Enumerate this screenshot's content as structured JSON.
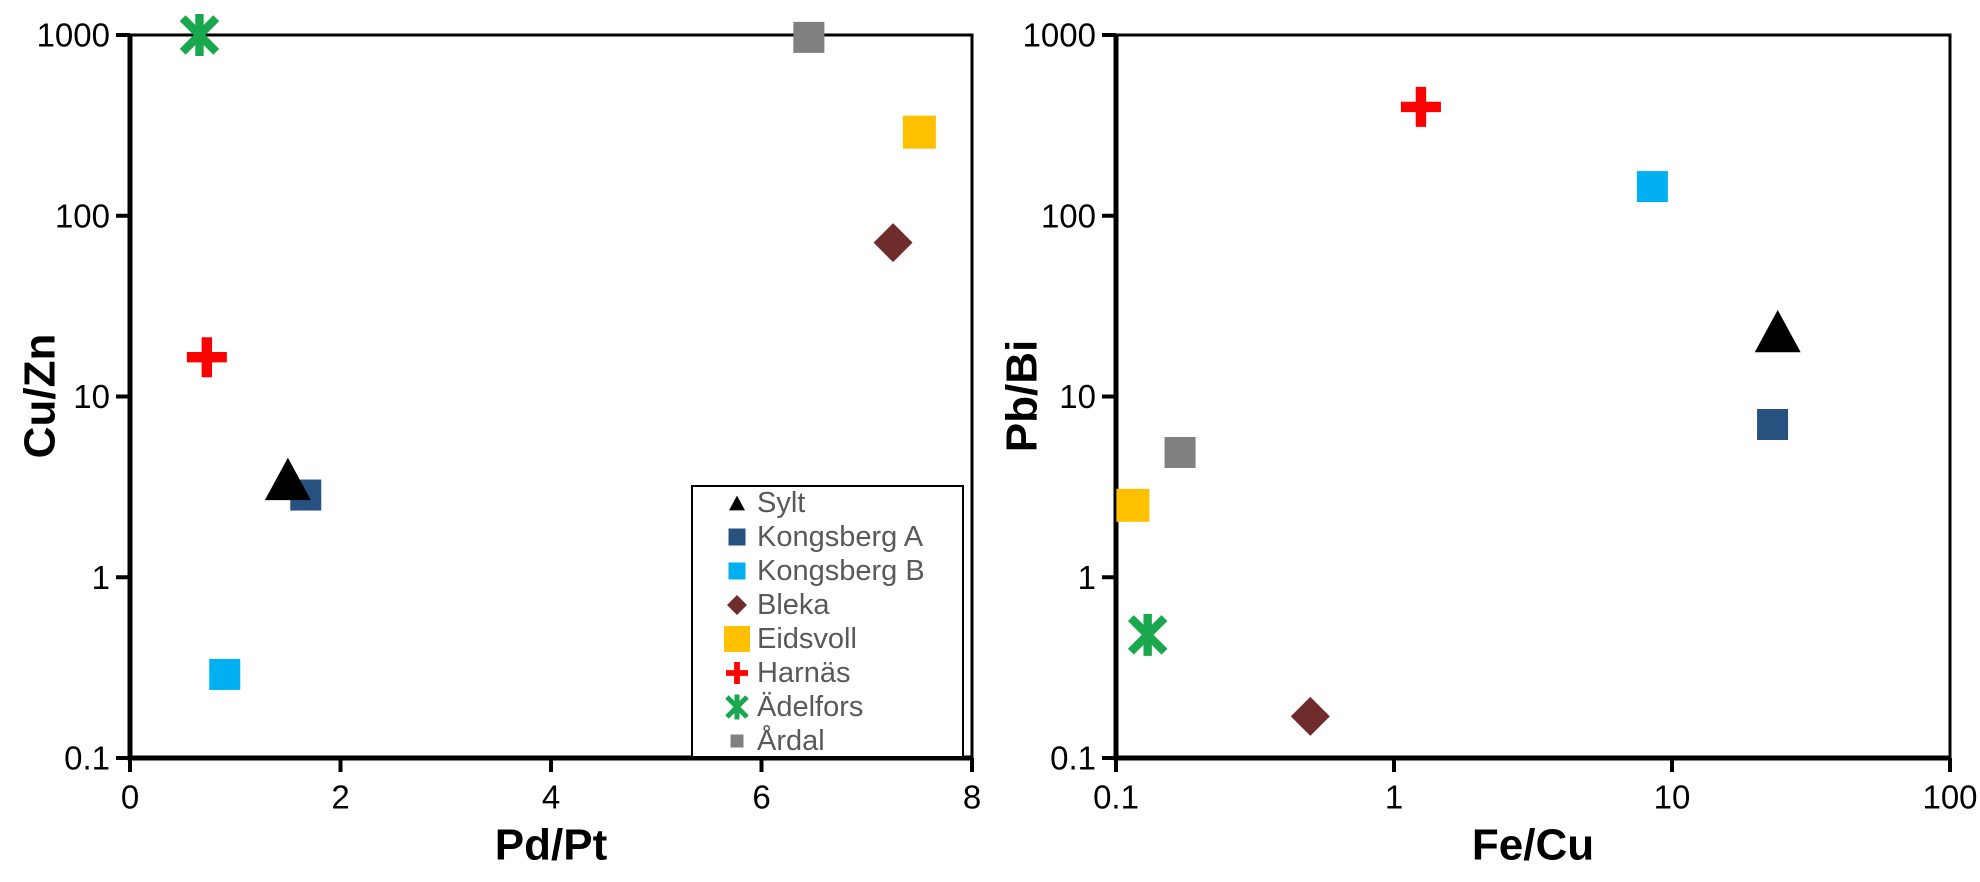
{
  "figure": {
    "background": "#ffffff",
    "axis_color": "#000000",
    "legend_text_color": "#595959"
  },
  "series_styles": [
    {
      "name": "Sylt",
      "marker": "triangle",
      "color": "#000000",
      "size": 46,
      "legend_size": 16
    },
    {
      "name": "Kongsberg A",
      "marker": "square",
      "color": "#27527F",
      "size": 31,
      "legend_size": 17
    },
    {
      "name": "Kongsberg B",
      "marker": "square",
      "color": "#00B0F0",
      "size": 31,
      "legend_size": 17
    },
    {
      "name": "Bleka",
      "marker": "diamond",
      "color": "#6F2C2B",
      "size": 39,
      "legend_size": 20
    },
    {
      "name": "Eidsvoll",
      "marker": "square",
      "color": "#FFC000",
      "size": 33,
      "legend_size": 26
    },
    {
      "name": "Harnäs",
      "marker": "plus",
      "color": "#FF0000",
      "size": 40,
      "legend_size": 22
    },
    {
      "name": "Ädelfors",
      "marker": "asterisk",
      "color": "#1AA84F",
      "size": 42,
      "legend_size": 25
    },
    {
      "name": "Årdal",
      "marker": "square",
      "color": "#808080",
      "size": 31,
      "legend_size": 13
    }
  ],
  "chart_data": [
    {
      "type": "scatter",
      "title": "",
      "xlabel": "Pd/Pt",
      "ylabel": "Cu/Zn",
      "xscale": "linear",
      "xlim": [
        0,
        8
      ],
      "xticks": [
        0,
        2,
        4,
        6,
        8
      ],
      "yscale": "log",
      "ylim": [
        0.1,
        1000
      ],
      "yticks": [
        0.1,
        1,
        10,
        100,
        1000
      ],
      "grid": false,
      "legend": {
        "visible": true,
        "position": "inside-bottom-right",
        "entries": [
          "Sylt",
          "Kongsberg A",
          "Kongsberg B",
          "Bleka",
          "Eidsvoll",
          "Harnäs",
          "Ädelfors",
          "Årdal"
        ]
      },
      "series": [
        {
          "name": "Sylt",
          "points": [
            [
              1.5,
              3.5
            ]
          ]
        },
        {
          "name": "Kongsberg A",
          "points": [
            [
              1.67,
              2.85
            ]
          ]
        },
        {
          "name": "Kongsberg B",
          "points": [
            [
              0.9,
              0.29
            ]
          ]
        },
        {
          "name": "Bleka",
          "points": [
            [
              7.25,
              71
            ]
          ]
        },
        {
          "name": "Eidsvoll",
          "points": [
            [
              7.5,
              290
            ]
          ]
        },
        {
          "name": "Harnäs",
          "points": [
            [
              0.73,
              16.5
            ]
          ]
        },
        {
          "name": "Ädelfors",
          "points": [
            [
              0.66,
              1000
            ]
          ]
        },
        {
          "name": "Årdal",
          "points": [
            [
              6.45,
              970
            ]
          ]
        }
      ]
    },
    {
      "type": "scatter",
      "title": "",
      "xlabel": "Fe/Cu",
      "ylabel": "Pb/Bi",
      "xscale": "log",
      "xlim": [
        0.1,
        100
      ],
      "xticks": [
        0.1,
        1,
        10,
        100
      ],
      "yscale": "log",
      "ylim": [
        0.1,
        1000
      ],
      "yticks": [
        0.1,
        1,
        10,
        100,
        1000
      ],
      "grid": false,
      "legend": {
        "visible": false
      },
      "series": [
        {
          "name": "Sylt",
          "points": [
            [
              24,
              23
            ]
          ]
        },
        {
          "name": "Kongsberg A",
          "points": [
            [
              23,
              7
            ]
          ]
        },
        {
          "name": "Kongsberg B",
          "points": [
            [
              8.5,
              145
            ]
          ]
        },
        {
          "name": "Bleka",
          "points": [
            [
              0.5,
              0.17
            ]
          ]
        },
        {
          "name": "Eidsvoll",
          "points": [
            [
              0.115,
              2.5
            ]
          ]
        },
        {
          "name": "Harnäs",
          "points": [
            [
              1.25,
              400
            ]
          ]
        },
        {
          "name": "Ädelfors",
          "points": [
            [
              0.13,
              0.48
            ]
          ]
        },
        {
          "name": "Årdal",
          "points": [
            [
              0.17,
              4.9
            ]
          ]
        }
      ]
    }
  ]
}
